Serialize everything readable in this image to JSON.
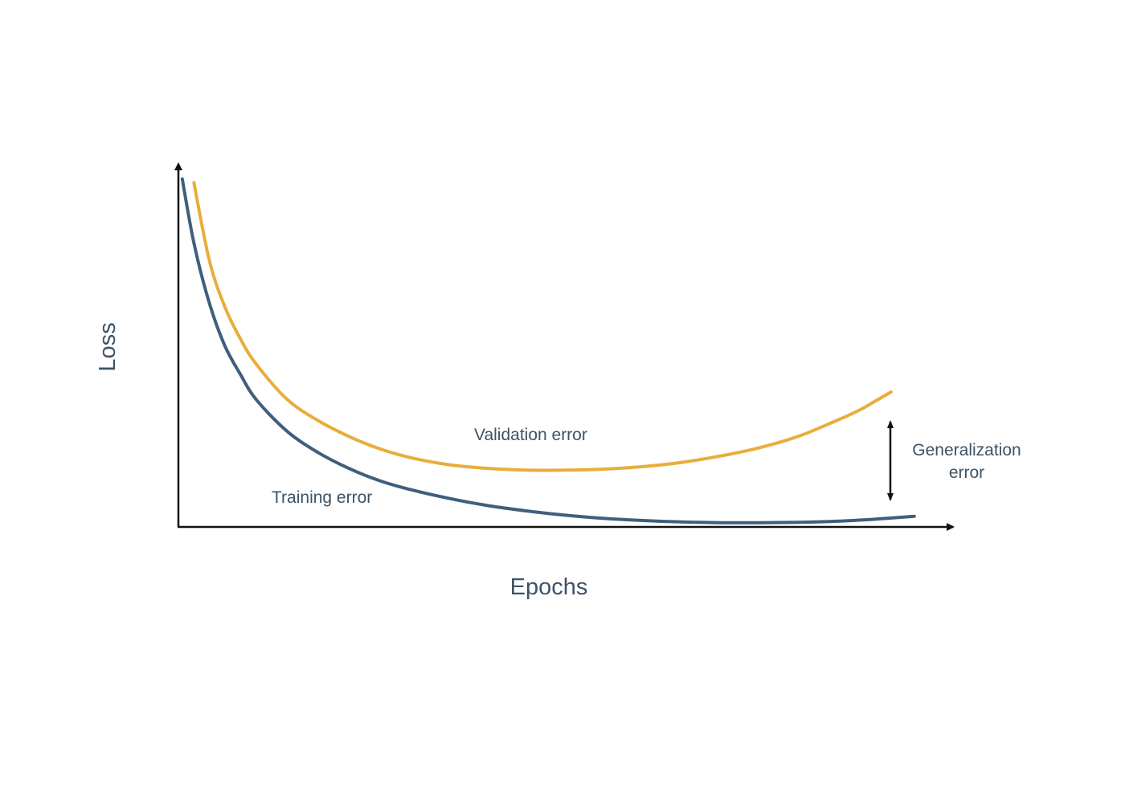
{
  "chart_data": {
    "type": "line",
    "xlabel": "Epochs",
    "ylabel": "Loss",
    "xlim": [
      0,
      100
    ],
    "ylim": [
      0,
      100
    ],
    "grid": false,
    "legend": "none",
    "series": [
      {
        "name": "Validation error",
        "color": "#e8ae3c",
        "x": [
          2,
          4,
          6,
          8,
          10,
          14,
          18,
          22,
          26,
          30,
          35,
          40,
          45,
          50,
          55,
          60,
          65,
          70,
          75,
          80,
          85,
          88,
          90,
          92
        ],
        "y": [
          97,
          75,
          62,
          53,
          46,
          36,
          30,
          25.5,
          22,
          19.5,
          17.5,
          16.5,
          16,
          16,
          16.3,
          17,
          18.2,
          20,
          22.3,
          25.5,
          30,
          33,
          35.5,
          38
        ]
      },
      {
        "name": "Training error",
        "color": "#3f5f7d",
        "x": [
          0.5,
          2,
          4,
          6,
          8,
          10,
          14,
          18,
          22,
          26,
          30,
          35,
          40,
          45,
          50,
          55,
          60,
          65,
          70,
          75,
          80,
          85,
          90,
          95
        ],
        "y": [
          98,
          80,
          63,
          51,
          43,
          36,
          27,
          21,
          16.5,
          13,
          10.5,
          8,
          6,
          4.5,
          3.3,
          2.4,
          1.8,
          1.4,
          1.2,
          1.2,
          1.3,
          1.6,
          2.2,
          3
        ]
      }
    ],
    "annotations": {
      "generalization_error": [
        "Generalization",
        "error"
      ]
    }
  }
}
